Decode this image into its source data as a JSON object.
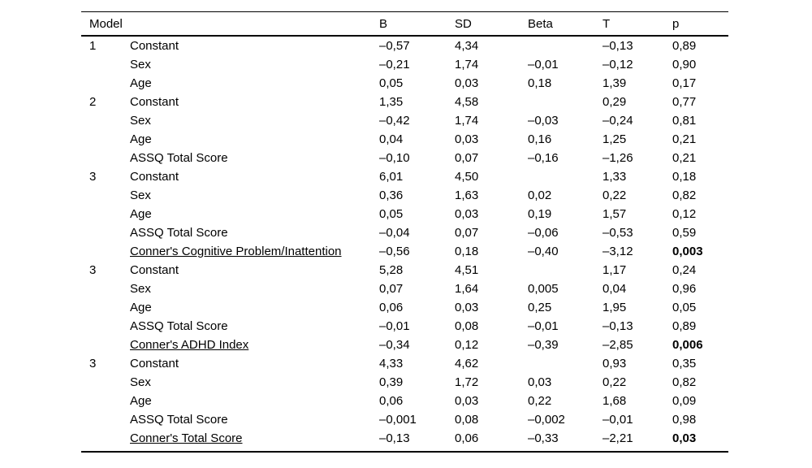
{
  "page": {
    "background_color": "#ffffff",
    "text_color": "#000000",
    "rule_color": "#000000"
  },
  "table": {
    "headers": {
      "model": "Model",
      "b": "B",
      "sd": "SD",
      "beta": "Beta",
      "t": "T",
      "p": "p"
    },
    "rows": [
      {
        "model": "1",
        "predictor": "Constant",
        "underline": false,
        "b": "–0,57",
        "sd": "4,34",
        "beta": "",
        "t": "–0,13",
        "p": "0,89",
        "p_bold": false
      },
      {
        "model": "",
        "predictor": "Sex",
        "underline": false,
        "b": "–0,21",
        "sd": "1,74",
        "beta": "–0,01",
        "t": "–0,12",
        "p": "0,90",
        "p_bold": false
      },
      {
        "model": "",
        "predictor": "Age",
        "underline": false,
        "b": "0,05",
        "sd": "0,03",
        "beta": "0,18",
        "t": "1,39",
        "p": "0,17",
        "p_bold": false
      },
      {
        "model": "2",
        "predictor": "Constant",
        "underline": false,
        "b": "1,35",
        "sd": "4,58",
        "beta": "",
        "t": "0,29",
        "p": "0,77",
        "p_bold": false
      },
      {
        "model": "",
        "predictor": "Sex",
        "underline": false,
        "b": "–0,42",
        "sd": "1,74",
        "beta": "–0,03",
        "t": "–0,24",
        "p": "0,81",
        "p_bold": false
      },
      {
        "model": "",
        "predictor": "Age",
        "underline": false,
        "b": "0,04",
        "sd": "0,03",
        "beta": "0,16",
        "t": "1,25",
        "p": "0,21",
        "p_bold": false
      },
      {
        "model": "",
        "predictor": "ASSQ Total Score",
        "underline": false,
        "b": "–0,10",
        "sd": "0,07",
        "beta": "–0,16",
        "t": "–1,26",
        "p": "0,21",
        "p_bold": false
      },
      {
        "model": "3",
        "predictor": "Constant",
        "underline": false,
        "b": "6,01",
        "sd": "4,50",
        "beta": "",
        "t": "1,33",
        "p": "0,18",
        "p_bold": false
      },
      {
        "model": "",
        "predictor": "Sex",
        "underline": false,
        "b": "0,36",
        "sd": "1,63",
        "beta": "0,02",
        "t": "0,22",
        "p": "0,82",
        "p_bold": false
      },
      {
        "model": "",
        "predictor": "Age",
        "underline": false,
        "b": "0,05",
        "sd": "0,03",
        "beta": "0,19",
        "t": "1,57",
        "p": "0,12",
        "p_bold": false
      },
      {
        "model": "",
        "predictor": "ASSQ Total Score",
        "underline": false,
        "b": "–0,04",
        "sd": "0,07",
        "beta": "–0,06",
        "t": "–0,53",
        "p": "0,59",
        "p_bold": false
      },
      {
        "model": "",
        "predictor": "Conner's Cognitive Problem/Inattention",
        "underline": true,
        "b": "–0,56",
        "sd": "0,18",
        "beta": "–0,40",
        "t": "–3,12",
        "p": "0,003",
        "p_bold": true
      },
      {
        "model": "3",
        "predictor": "Constant",
        "underline": false,
        "b": "5,28",
        "sd": "4,51",
        "beta": "",
        "t": "1,17",
        "p": "0,24",
        "p_bold": false
      },
      {
        "model": "",
        "predictor": "Sex",
        "underline": false,
        "b": "0,07",
        "sd": "1,64",
        "beta": "0,005",
        "t": "0,04",
        "p": "0,96",
        "p_bold": false
      },
      {
        "model": "",
        "predictor": "Age",
        "underline": false,
        "b": "0,06",
        "sd": "0,03",
        "beta": "0,25",
        "t": "1,95",
        "p": "0,05",
        "p_bold": false
      },
      {
        "model": "",
        "predictor": "ASSQ Total Score",
        "underline": false,
        "b": "–0,01",
        "sd": "0,08",
        "beta": "–0,01",
        "t": "–0,13",
        "p": "0,89",
        "p_bold": false
      },
      {
        "model": "",
        "predictor": "Conner's ADHD Index",
        "underline": true,
        "b": "–0,34",
        "sd": "0,12",
        "beta": "–0,39",
        "t": "–2,85",
        "p": "0,006",
        "p_bold": true
      },
      {
        "model": "3",
        "predictor": "Constant",
        "underline": false,
        "b": "4,33",
        "sd": "4,62",
        "beta": "",
        "t": "0,93",
        "p": "0,35",
        "p_bold": false
      },
      {
        "model": "",
        "predictor": "Sex",
        "underline": false,
        "b": "0,39",
        "sd": "1,72",
        "beta": "0,03",
        "t": "0,22",
        "p": "0,82",
        "p_bold": false
      },
      {
        "model": "",
        "predictor": "Age",
        "underline": false,
        "b": "0,06",
        "sd": "0,03",
        "beta": "0,22",
        "t": "1,68",
        "p": "0,09",
        "p_bold": false
      },
      {
        "model": "",
        "predictor": "ASSQ Total Score",
        "underline": false,
        "b": "–0,001",
        "sd": "0,08",
        "beta": "–0,002",
        "t": "–0,01",
        "p": "0,98",
        "p_bold": false
      },
      {
        "model": "",
        "predictor": "Conner's Total Score",
        "underline": true,
        "b": "–0,13",
        "sd": "0,06",
        "beta": "–0,33",
        "t": "–2,21",
        "p": "0,03",
        "p_bold": true
      }
    ]
  }
}
